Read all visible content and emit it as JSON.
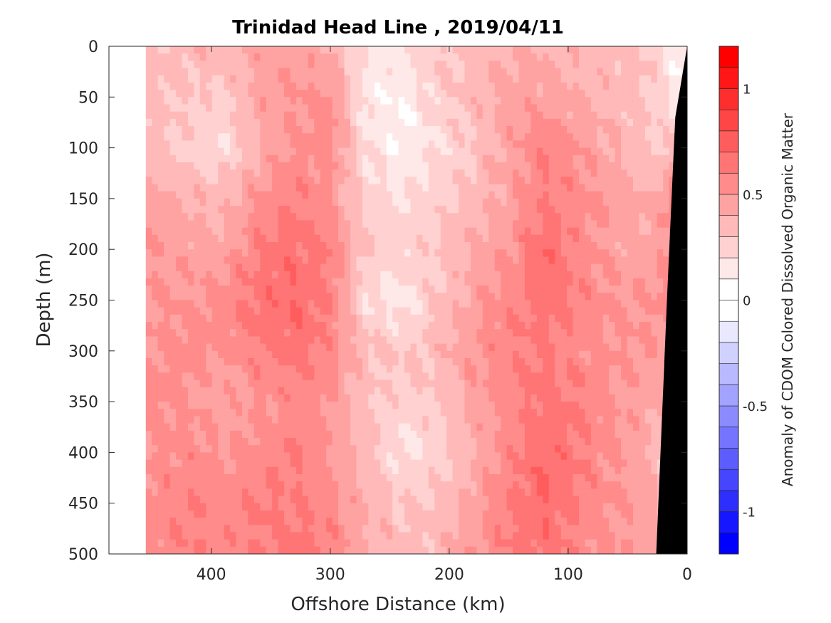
{
  "chart_data": {
    "type": "heatmap",
    "subtype": "filled-contour",
    "title": "Trinidad Head Line , 2019/04/11",
    "xlabel": "Offshore Distance (km)",
    "ylabel": "Depth (m)",
    "colorbar_label": "Anomaly of CDOM Colored Dissolved Organic Matter",
    "xlim": [
      0,
      486
    ],
    "x_reversed": true,
    "ylim": [
      0,
      500
    ],
    "y_reversed": true,
    "xticks": [
      400,
      300,
      200,
      100,
      0
    ],
    "xtick_labels": [
      "400",
      "300",
      "200",
      "100",
      "0"
    ],
    "yticks": [
      0,
      50,
      100,
      150,
      200,
      250,
      300,
      350,
      400,
      450,
      500
    ],
    "ytick_labels": [
      "0",
      "50",
      "100",
      "150",
      "200",
      "250",
      "300",
      "350",
      "400",
      "450",
      "500"
    ],
    "colorbar": {
      "range": [
        -1.2,
        1.2
      ],
      "step": 0.1,
      "ticks": [
        1,
        0.5,
        0,
        -0.5,
        -1
      ],
      "tick_labels": [
        "1",
        "0.5",
        "0",
        "-0.5",
        "-1"
      ],
      "positive_color": "#ff0000",
      "negative_color": "#0000ff",
      "zero_color": "#ffffff"
    },
    "distance_km": [
      455,
      420,
      390,
      360,
      330,
      300,
      270,
      240,
      210,
      180,
      150,
      120,
      90,
      60,
      30,
      10
    ],
    "depth_m": [
      0,
      50,
      100,
      150,
      200,
      250,
      300,
      350,
      400,
      450,
      500
    ],
    "values": [
      [
        0.3,
        0.35,
        0.4,
        0.45,
        0.45,
        0.4,
        0.2,
        0.2,
        0.3,
        0.35,
        0.4,
        0.4,
        0.35,
        0.35,
        0.3,
        0.1
      ],
      [
        0.35,
        0.3,
        0.25,
        0.45,
        0.5,
        0.55,
        0.15,
        0.1,
        0.25,
        0.35,
        0.45,
        0.45,
        0.4,
        0.35,
        0.3,
        0.15
      ],
      [
        0.35,
        0.25,
        0.2,
        0.4,
        0.5,
        0.55,
        0.2,
        0.1,
        0.2,
        0.3,
        0.45,
        0.6,
        0.5,
        0.4,
        0.3,
        0.3
      ],
      [
        0.45,
        0.4,
        0.35,
        0.5,
        0.6,
        0.5,
        0.25,
        0.2,
        0.25,
        0.35,
        0.45,
        0.6,
        0.55,
        0.45,
        0.4,
        0.6
      ],
      [
        0.5,
        0.45,
        0.45,
        0.6,
        0.65,
        0.6,
        0.3,
        0.25,
        0.3,
        0.4,
        0.5,
        0.7,
        0.55,
        0.45,
        0.45,
        0.5
      ],
      [
        0.5,
        0.5,
        0.55,
        0.65,
        0.7,
        0.6,
        0.2,
        0.15,
        0.3,
        0.45,
        0.55,
        0.65,
        0.6,
        0.5,
        0.5,
        0.6
      ],
      [
        0.5,
        0.55,
        0.5,
        0.6,
        0.65,
        0.55,
        0.35,
        0.3,
        0.35,
        0.5,
        0.6,
        0.6,
        0.55,
        0.5,
        0.5,
        0.4
      ],
      [
        0.55,
        0.5,
        0.45,
        0.5,
        0.55,
        0.5,
        0.3,
        0.25,
        0.3,
        0.45,
        0.55,
        0.65,
        0.6,
        0.5,
        0.45,
        0.3
      ],
      [
        0.5,
        0.55,
        0.5,
        0.55,
        0.6,
        0.5,
        0.35,
        0.15,
        0.25,
        0.4,
        0.55,
        0.7,
        0.6,
        0.5,
        0.4,
        0.2
      ],
      [
        0.55,
        0.6,
        0.55,
        0.6,
        0.6,
        0.55,
        0.4,
        0.3,
        0.3,
        0.45,
        0.6,
        0.7,
        0.6,
        0.5,
        0.45,
        0.2
      ],
      [
        0.5,
        0.6,
        0.55,
        0.6,
        0.65,
        0.6,
        0.4,
        0.35,
        0.35,
        0.5,
        0.6,
        0.65,
        0.55,
        0.5,
        0.45,
        0.3
      ]
    ],
    "seafloor": {
      "distance_km": [
        0,
        10,
        17,
        26,
        0
      ],
      "depth_m": [
        0,
        70,
        250,
        500,
        500
      ],
      "color": "#000000"
    }
  }
}
